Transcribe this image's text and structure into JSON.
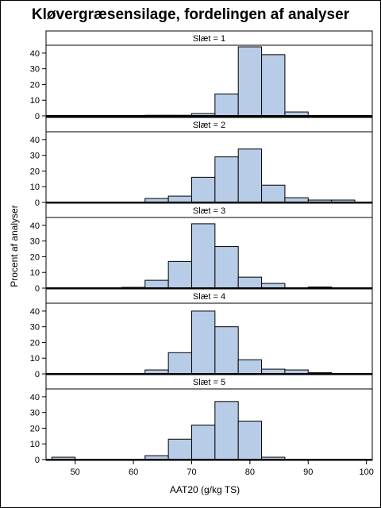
{
  "chart_data": {
    "type": "bar",
    "title": "Kløvergræsensilage, fordelingen af analyser",
    "xlabel": "AAT20 (g/kg TS)",
    "ylabel": "Procent af analyser",
    "xlim": [
      45,
      101
    ],
    "x_ticks": [
      50,
      60,
      70,
      80,
      90,
      100
    ],
    "ylim": [
      0,
      45
    ],
    "y_ticks": [
      0,
      10,
      20,
      30,
      40
    ],
    "bin_edges": [
      46,
      50,
      54,
      58,
      62,
      66,
      70,
      74,
      78,
      82,
      86,
      90,
      94,
      98
    ],
    "colors": {
      "bar_fill": "#b7cce6",
      "bar_stroke": "#000000"
    },
    "panels": [
      {
        "label": "Slæt = 1",
        "values": [
          0,
          0,
          0,
          0,
          0.4,
          0.4,
          1.5,
          14,
          44,
          39,
          2.5,
          0,
          0
        ]
      },
      {
        "label": "Slæt = 2",
        "values": [
          0,
          0,
          0,
          0,
          2.5,
          4,
          16,
          29,
          34,
          11,
          3,
          1.5,
          1.5
        ]
      },
      {
        "label": "Slæt = 3",
        "values": [
          0,
          0,
          0,
          0.5,
          5,
          17,
          41,
          26.5,
          7,
          3,
          0,
          0.7,
          0
        ]
      },
      {
        "label": "Slæt = 4",
        "values": [
          0,
          0,
          0,
          0,
          2.5,
          13.5,
          40,
          30,
          9,
          3,
          2.5,
          0.8,
          0
        ]
      },
      {
        "label": "Slæt = 5",
        "values": [
          1.5,
          0,
          0,
          0,
          2.5,
          13,
          22,
          37,
          24.5,
          1.5,
          0,
          0,
          0
        ]
      }
    ]
  }
}
